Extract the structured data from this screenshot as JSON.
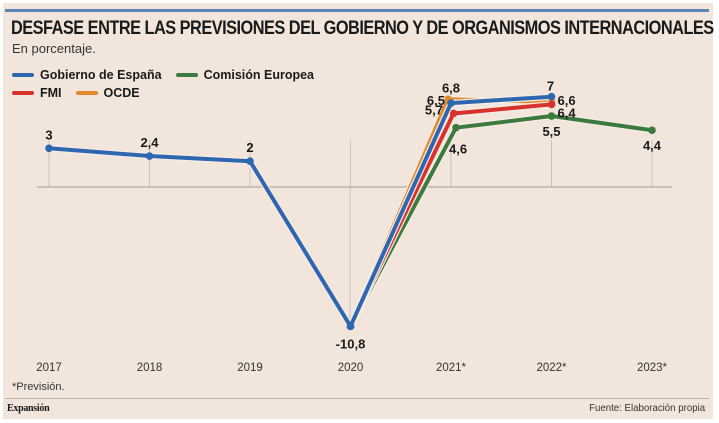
{
  "chart_data": {
    "type": "line",
    "title": "DESFASE ENTRE LAS PREVISIONES DEL GOBIERNO Y DE ORGANISMOS INTERNACIONALES",
    "subtitle": "En porcentaje.",
    "xlabel": "",
    "ylabel": "",
    "categories": [
      "2017",
      "2018",
      "2019",
      "2020",
      "2021*",
      "2022*",
      "2023*"
    ],
    "ylim": [
      -11,
      7.5
    ],
    "grid": "vertical lines at each category, zero baseline",
    "legend_position": "top-left",
    "series": [
      {
        "name": "OCDE",
        "color": "#e08a2c",
        "values": [
          null,
          null,
          null,
          -10.8,
          6.8,
          6.6,
          null
        ],
        "labels": [
          null,
          null,
          null,
          null,
          "6,8",
          null,
          null
        ]
      },
      {
        "name": "Comisión Europea",
        "color": "#3d7a3f",
        "values": [
          null,
          null,
          null,
          -10.8,
          4.6,
          5.5,
          4.4
        ],
        "labels": [
          null,
          null,
          null,
          null,
          "4,6",
          "5,5",
          "4,4"
        ]
      },
      {
        "name": "FMI",
        "color": "#d8322c",
        "values": [
          null,
          null,
          null,
          -10.8,
          5.7,
          6.4,
          null
        ],
        "labels": [
          null,
          null,
          null,
          null,
          "5,7",
          "6,4",
          null
        ]
      },
      {
        "name": "Gobierno de España",
        "color": "#2e66b0",
        "values": [
          3,
          2.4,
          2,
          -10.8,
          6.5,
          7,
          null
        ],
        "labels": [
          "3",
          "2,4",
          "2",
          "-10,8",
          "6,5",
          "7",
          null
        ]
      }
    ],
    "extra_labels": [
      {
        "category": "2022*",
        "text": "6,6",
        "series": "OCDE"
      }
    ],
    "footnote": "*Previsión.",
    "source": "Fuente: Elaboración propia",
    "brand": "Expansión"
  },
  "legend": [
    {
      "name": "Gobierno de España",
      "color": "#2e66b0"
    },
    {
      "name": "Comisión Europea",
      "color": "#3d7a3f"
    },
    {
      "name": "FMI",
      "color": "#d8322c"
    },
    {
      "name": "OCDE",
      "color": "#e08a2c"
    }
  ]
}
